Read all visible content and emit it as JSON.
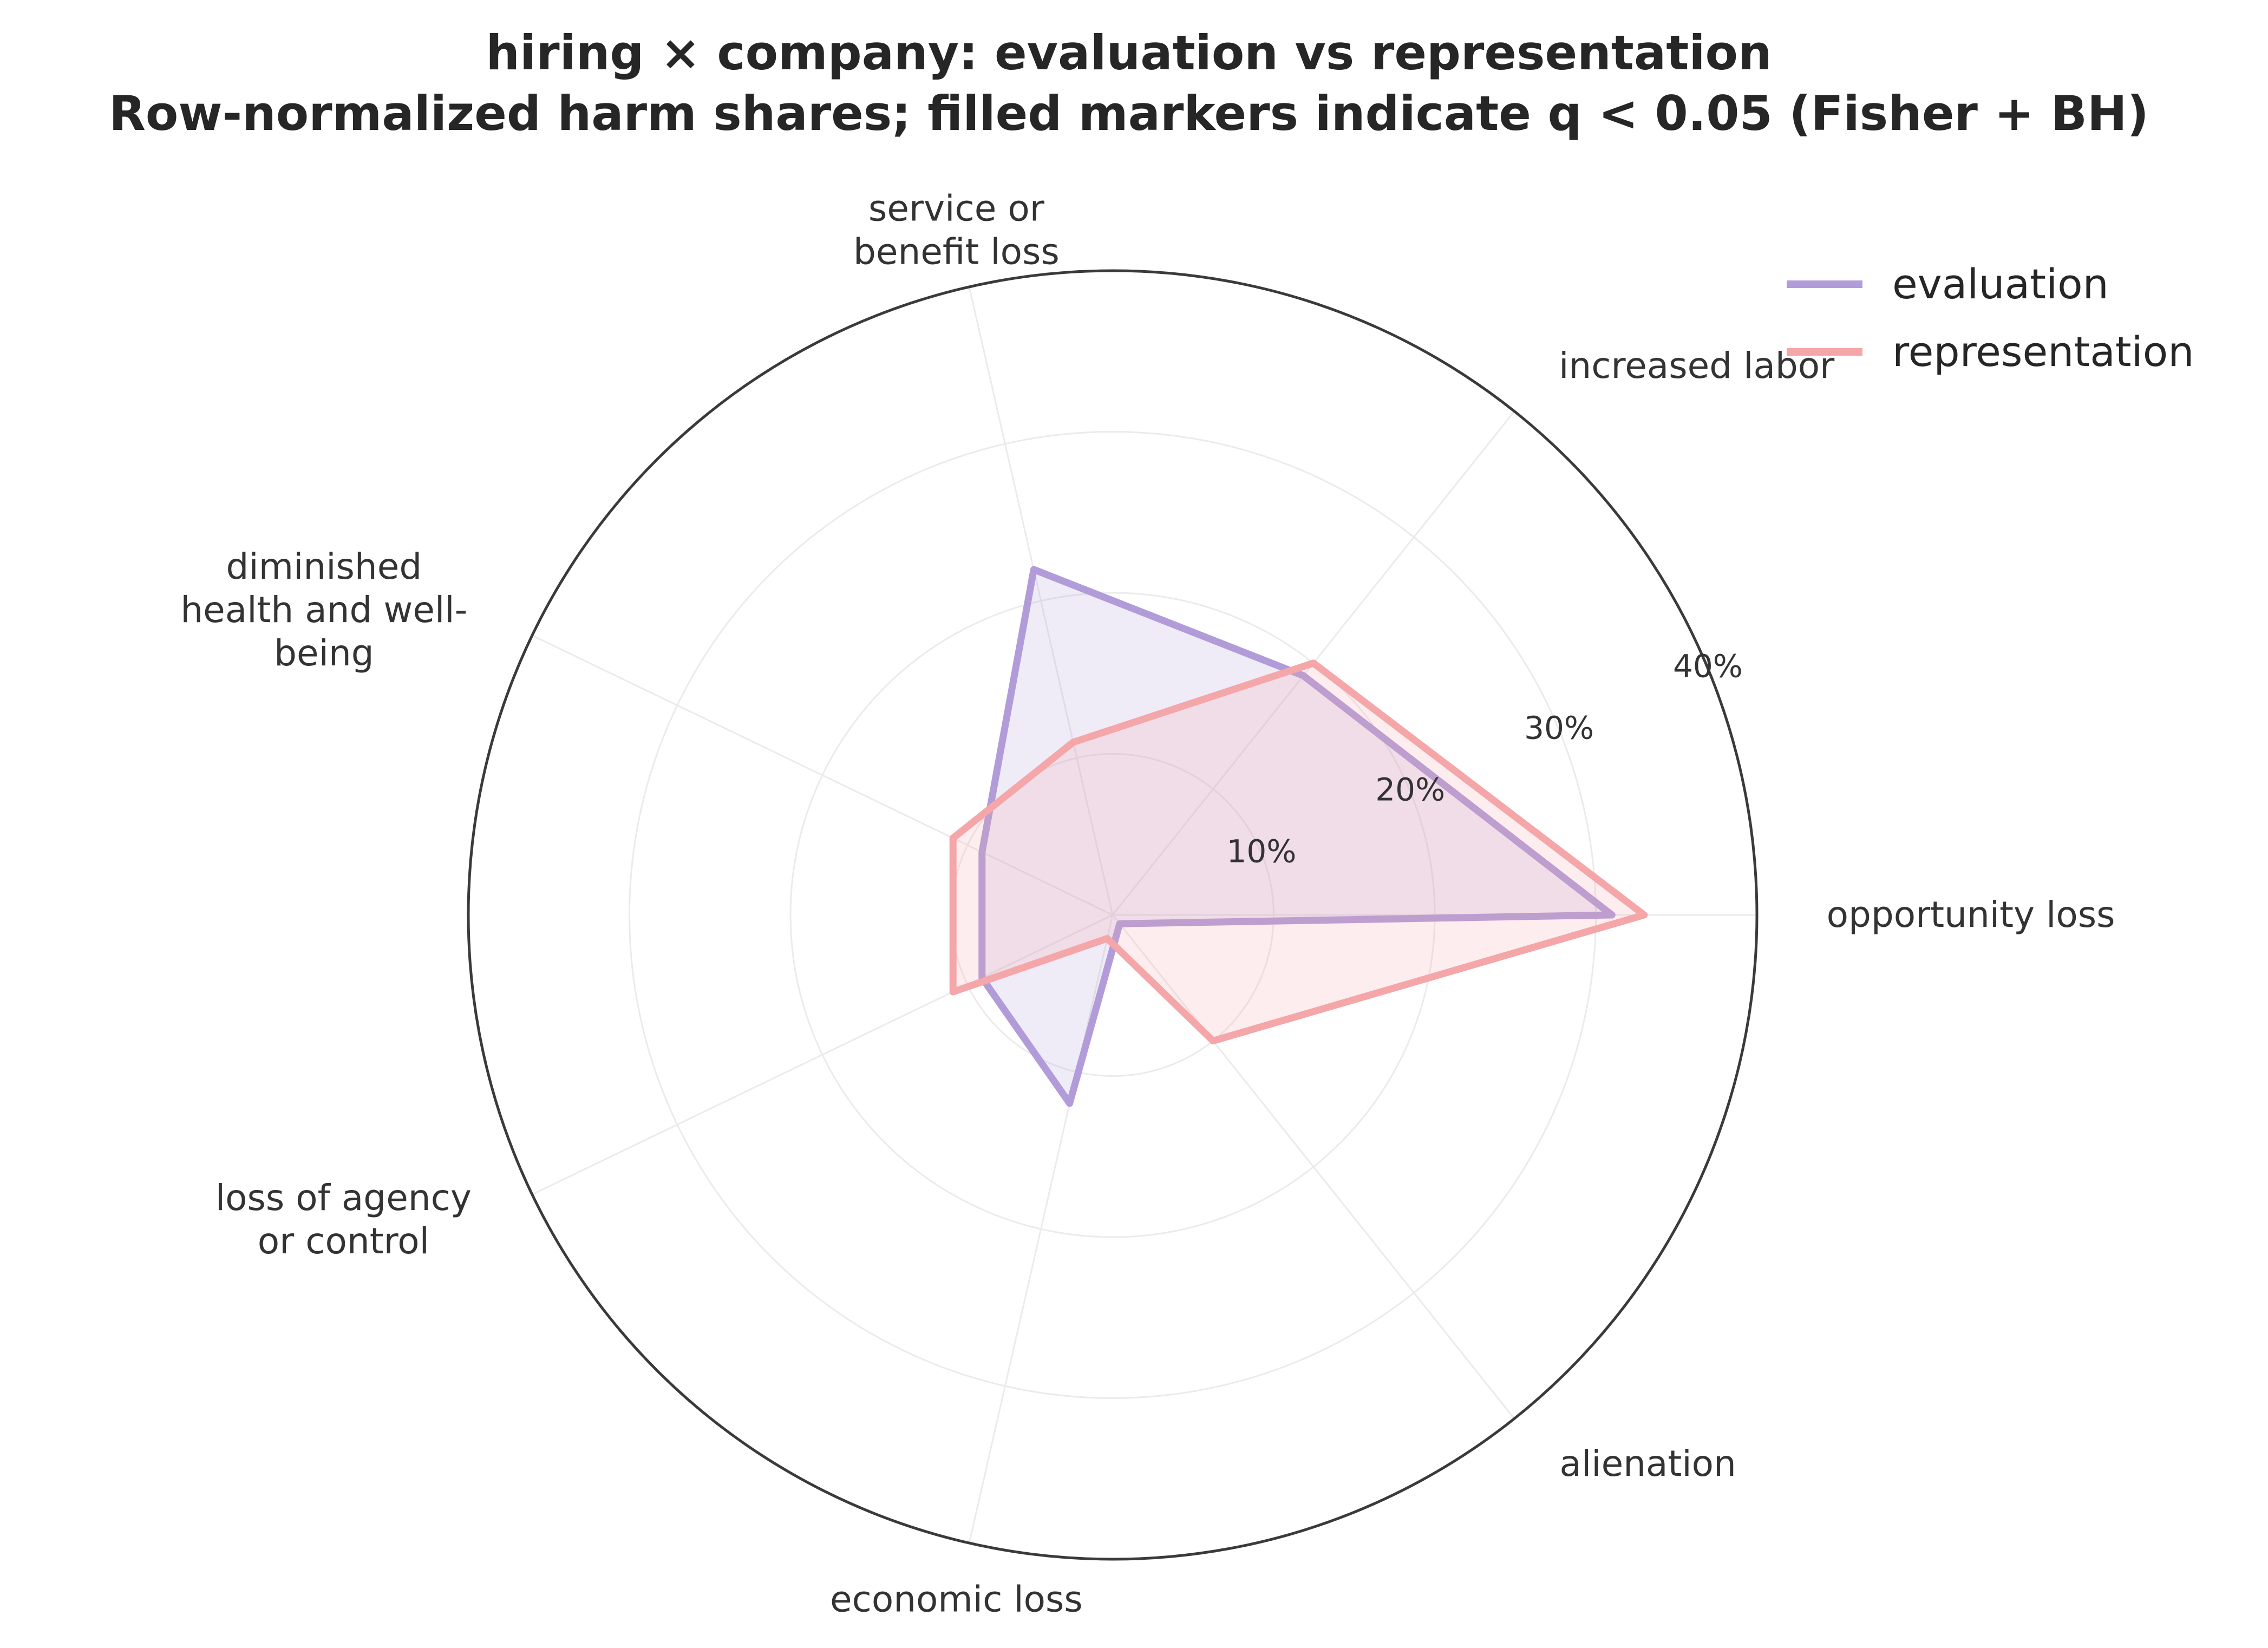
{
  "chart_data": {
    "type": "radar",
    "title": "hiring × company: evaluation vs representation",
    "subtitle": "Row-normalized harm shares; filled markers indicate q < 0.05 (Fisher + BH)",
    "axes": [
      "opportunity loss",
      "increased labor",
      "service or benefit loss",
      "diminished health and well-being",
      "loss of agency or control",
      "economic loss",
      "alienation"
    ],
    "axis_label_lines": [
      [
        "opportunity loss"
      ],
      [
        "increased labor"
      ],
      [
        "service or",
        "benefit loss"
      ],
      [
        "diminished",
        "health and well-",
        "being"
      ],
      [
        "loss of agency",
        "or control"
      ],
      [
        "economic loss"
      ],
      [
        "alienation"
      ]
    ],
    "radial_ticks": [
      10,
      20,
      30,
      40
    ],
    "radial_tick_labels": [
      "10%",
      "20%",
      "30%",
      "40%"
    ],
    "rlim": [
      0,
      40
    ],
    "grid": true,
    "legend_position": "top-right",
    "series": [
      {
        "name": "evaluation",
        "color": "#b19cd9",
        "values": [
          31,
          19,
          22,
          9,
          9,
          12,
          0.7
        ]
      },
      {
        "name": "representation",
        "color": "#f4a6a8",
        "values": [
          33,
          20,
          11,
          11,
          11,
          1.5,
          10
        ]
      }
    ]
  }
}
